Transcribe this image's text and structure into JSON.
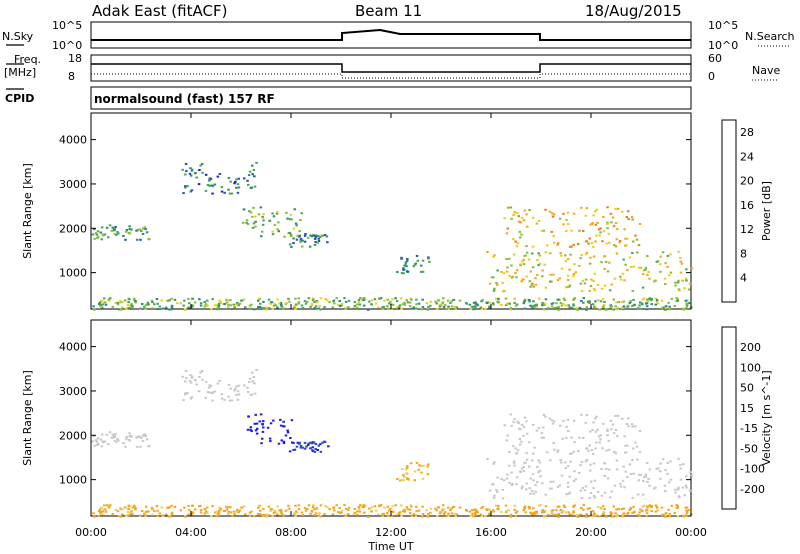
{
  "header": {
    "station": "Adak East (fitACF)",
    "beam": "Beam 11",
    "date": "18/Aug/2015"
  },
  "panels": {
    "nsky": {
      "label": "N.Sky",
      "ticks": [
        "10^5",
        "10^0"
      ],
      "right_label": "N.Search",
      "right_ticks": [
        "10^5",
        "10^0"
      ]
    },
    "freq": {
      "label_line1": "Freq.",
      "label_line2": "[MHz]",
      "ticks": [
        "18",
        "8"
      ],
      "right_label": "Nave",
      "right_ticks": [
        "60",
        "0"
      ]
    },
    "cpid": {
      "label": "CPID",
      "text": "normalsound (fast) 157 RF"
    }
  },
  "colors": {
    "power": [
      "#1f1fe0",
      "#2a50b0",
      "#2e8b73",
      "#4aa55c",
      "#84bd3a",
      "#e7cf1f",
      "#f5a81e",
      "#f07820",
      "#e84a20",
      "#e01616"
    ],
    "velocity": [
      "#1f1fe0",
      "#2c4db8",
      "#2a7a5a",
      "#63c23b",
      "#c8c8c8",
      "#e8d068",
      "#f4a51f",
      "#ef7a20",
      "#e0321a"
    ]
  },
  "chart_data": [
    {
      "type": "heatmap",
      "name": "power",
      "xlabel": "",
      "ylabel": "Slant Range [km]",
      "x_ticks": [
        "00:00",
        "04:00",
        "08:00",
        "12:00",
        "16:00",
        "20:00",
        "00:00"
      ],
      "y_ticks": [
        "1000",
        "2000",
        "3000",
        "4000"
      ],
      "ylim": [
        180,
        4600
      ],
      "colorbar": {
        "label": "Power [dB]",
        "ticks": [
          "4",
          "8",
          "12",
          "16",
          "20",
          "24",
          "28"
        ],
        "range": [
          0,
          30
        ]
      },
      "echo_regions": [
        {
          "t": [
            0.0,
            2.3
          ],
          "r": [
            1750,
            2100
          ],
          "val": 10
        },
        {
          "t": [
            3.6,
            6.6
          ],
          "r": [
            2800,
            3500
          ],
          "val": 7
        },
        {
          "t": [
            6.0,
            8.4
          ],
          "r": [
            1800,
            2500
          ],
          "val": 11
        },
        {
          "t": [
            7.8,
            9.5
          ],
          "r": [
            1600,
            1900
          ],
          "val": 8
        },
        {
          "t": [
            12.2,
            13.5
          ],
          "r": [
            1000,
            1400
          ],
          "val": 8
        },
        {
          "t": [
            15.8,
            24.0
          ],
          "r": [
            600,
            1500
          ],
          "val": 16
        },
        {
          "t": [
            16.5,
            22.0
          ],
          "r": [
            1600,
            2500
          ],
          "val": 18
        },
        {
          "t": [
            0.0,
            24.0
          ],
          "r": [
            180,
            450
          ],
          "val": 12
        }
      ]
    },
    {
      "type": "heatmap",
      "name": "velocity",
      "xlabel": "Time UT",
      "ylabel": "Slant Range [km]",
      "x_ticks": [
        "00:00",
        "04:00",
        "08:00",
        "12:00",
        "16:00",
        "20:00",
        "00:00"
      ],
      "y_ticks": [
        "1000",
        "2000",
        "3000",
        "4000"
      ],
      "ylim": [
        180,
        4600
      ],
      "colorbar": {
        "label": "Velocity [m s^-1]",
        "ticks": [
          "200",
          "100",
          "50",
          "15",
          "-15",
          "-50",
          "-100",
          "-200"
        ]
      },
      "echo_regions": [
        {
          "t": [
            0.0,
            2.3
          ],
          "r": [
            1750,
            2100
          ],
          "val": 0
        },
        {
          "t": [
            3.6,
            6.6
          ],
          "r": [
            2800,
            3500
          ],
          "val": 0
        },
        {
          "t": [
            6.2,
            8.0
          ],
          "r": [
            1800,
            2500
          ],
          "val": 200
        },
        {
          "t": [
            7.8,
            9.5
          ],
          "r": [
            1600,
            1900
          ],
          "val": 150
        },
        {
          "t": [
            12.2,
            13.5
          ],
          "r": [
            1000,
            1400
          ],
          "val": -30
        },
        {
          "t": [
            15.8,
            24.0
          ],
          "r": [
            600,
            1500
          ],
          "val": 0
        },
        {
          "t": [
            16.5,
            22.0
          ],
          "r": [
            1600,
            2500
          ],
          "val": 0
        },
        {
          "t": [
            0.0,
            24.0
          ],
          "r": [
            180,
            450
          ],
          "val": -40
        }
      ]
    }
  ]
}
